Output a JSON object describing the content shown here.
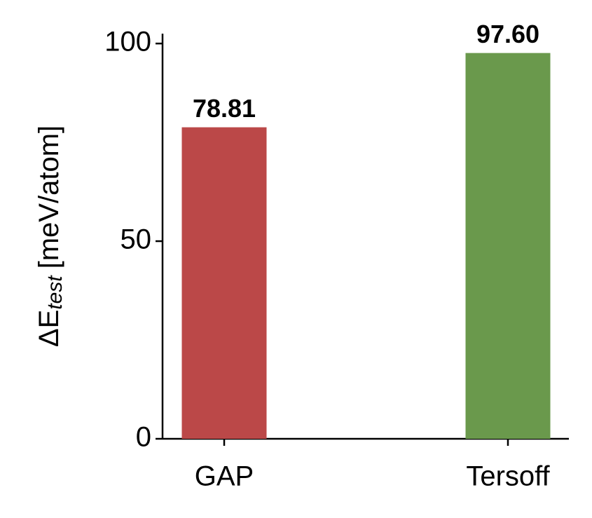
{
  "chart_data": {
    "type": "bar",
    "y_label": "ΔE",
    "y_label_subscript": "test",
    "y_label_unit": "[meV/atom]",
    "categories": [
      "GAP",
      "Tersoff"
    ],
    "values": [
      78.81,
      97.6
    ],
    "value_labels": [
      "78.81",
      "97.60"
    ],
    "colors": [
      "#bb4848",
      "#6a994c"
    ],
    "ylim": [
      0,
      102.5
    ],
    "yticks": [
      0,
      50,
      100
    ]
  }
}
